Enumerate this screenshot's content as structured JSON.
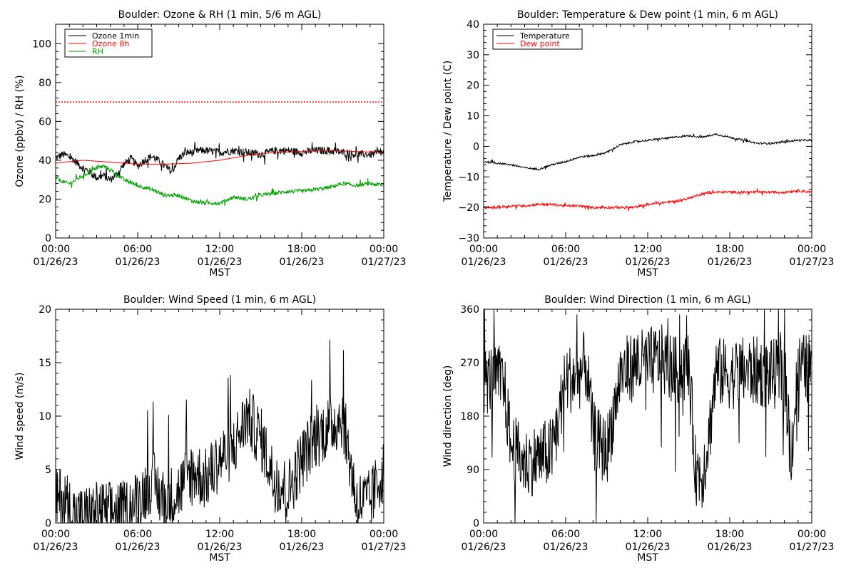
{
  "chart_data": [
    {
      "type": "line",
      "title": "Boulder: Ozone & RH (1 min, 5/6 m AGL)",
      "ylabel": "Ozone (ppbv) / RH (%)",
      "xlabel": "MST",
      "ylim": [
        0,
        110
      ],
      "yticks": [
        0,
        20,
        40,
        60,
        80,
        100
      ],
      "xlim": [
        0,
        24
      ],
      "xticks": [
        0,
        6,
        12,
        18,
        24
      ],
      "xtick_labels": [
        [
          "00:00",
          "01/26/23"
        ],
        [
          "06:00",
          "01/26/23"
        ],
        [
          "12:00",
          "01/26/23"
        ],
        [
          "18:00",
          "01/26/23"
        ],
        [
          "00:00",
          "01/27/23"
        ]
      ],
      "legend_position": "top-left",
      "reference_line": {
        "value": 70,
        "style": "dotted",
        "color": "#ff0000"
      },
      "series": [
        {
          "name": "Ozone 1min",
          "color": "#000000",
          "noise": 2.0,
          "x": [
            0,
            0.5,
            1,
            1.5,
            2,
            2.5,
            3,
            3.5,
            4,
            4.5,
            5,
            5.5,
            6,
            6.5,
            7,
            7.5,
            8,
            8.5,
            9,
            9.5,
            10,
            10.5,
            11,
            12,
            13,
            14,
            15,
            16,
            17,
            18,
            19,
            20,
            21,
            22,
            23,
            24
          ],
          "y": [
            41,
            43,
            42,
            39,
            36,
            34,
            31,
            32,
            30,
            33,
            38,
            41,
            37,
            40,
            42,
            40,
            37,
            34,
            41,
            44,
            44,
            45,
            45,
            44,
            45,
            44,
            43,
            45,
            45,
            44,
            45,
            45,
            44,
            43,
            43,
            44
          ]
        },
        {
          "name": "Ozone 8h",
          "color": "#ff0000",
          "noise": 0,
          "x": [
            0,
            2,
            4,
            6,
            8,
            10,
            12,
            14,
            16,
            18,
            20,
            22,
            24
          ],
          "y": [
            38.5,
            40,
            39,
            38,
            38,
            38.5,
            40,
            42.5,
            44,
            44.5,
            45,
            44.5,
            44
          ]
        },
        {
          "name": "RH",
          "color": "#00a000",
          "noise": 1.0,
          "x": [
            0,
            0.5,
            1,
            2,
            3,
            3.5,
            4,
            4.5,
            5,
            6,
            7,
            8,
            9,
            10,
            11,
            12,
            13,
            14,
            15,
            16,
            17,
            18,
            19,
            20,
            21,
            22,
            23,
            24
          ],
          "y": [
            31,
            29,
            28,
            32,
            36,
            37,
            35,
            33,
            30,
            27,
            25,
            22,
            22,
            19,
            18,
            18,
            21,
            20,
            22,
            23,
            24,
            24,
            25,
            26,
            28,
            27,
            28,
            27
          ]
        }
      ]
    },
    {
      "type": "line",
      "title": "Boulder: Temperature & Dew point (1 min, 6 m AGL)",
      "ylabel": "Temperature / Dew point (C)",
      "xlabel": "MST",
      "ylim": [
        -30,
        40
      ],
      "yticks": [
        -30,
        -20,
        -10,
        0,
        10,
        20,
        30,
        40
      ],
      "xlim": [
        0,
        24
      ],
      "xticks": [
        0,
        6,
        12,
        18,
        24
      ],
      "xtick_labels": [
        [
          "00:00",
          "01/26/23"
        ],
        [
          "06:00",
          "01/26/23"
        ],
        [
          "12:00",
          "01/26/23"
        ],
        [
          "18:00",
          "01/26/23"
        ],
        [
          "00:00",
          "01/27/23"
        ]
      ],
      "legend_position": "top-left",
      "series": [
        {
          "name": "Temperature",
          "color": "#000000",
          "noise": 0.3,
          "x": [
            0,
            1,
            2,
            3,
            4,
            5,
            6,
            7,
            8,
            9,
            10,
            11,
            12,
            13,
            14,
            15,
            16,
            17,
            18,
            19,
            20,
            21,
            22,
            23,
            24
          ],
          "y": [
            -5,
            -5.5,
            -6,
            -7,
            -7.5,
            -6,
            -5,
            -3.5,
            -3,
            -2,
            0.5,
            1.5,
            2,
            2.5,
            3,
            3.5,
            3,
            4,
            3,
            2,
            1,
            1,
            1.5,
            2,
            2
          ]
        },
        {
          "name": "Dew point",
          "color": "#ff0000",
          "noise": 0.4,
          "x": [
            0,
            1,
            2,
            3,
            4,
            5,
            6,
            7,
            8,
            9,
            10,
            11,
            12,
            13,
            14,
            15,
            16,
            17,
            18,
            19,
            20,
            21,
            22,
            23,
            24
          ],
          "y": [
            -20,
            -20,
            -19.5,
            -19.5,
            -19,
            -19,
            -19.5,
            -19.5,
            -20,
            -20,
            -20,
            -20,
            -19,
            -18.5,
            -18,
            -17,
            -15.5,
            -15,
            -15,
            -15,
            -15,
            -15,
            -15,
            -14.5,
            -15
          ]
        }
      ]
    },
    {
      "type": "line",
      "title": "Boulder: Wind Speed (1 min, 6 m AGL)",
      "ylabel": "Wind speed (m/s)",
      "xlabel": "MST",
      "ylim": [
        0,
        20
      ],
      "yticks": [
        0,
        5,
        10,
        15,
        20
      ],
      "xlim": [
        0,
        24
      ],
      "xticks": [
        0,
        6,
        12,
        18,
        24
      ],
      "xtick_labels": [
        [
          "00:00",
          "01/26/23"
        ],
        [
          "06:00",
          "01/26/23"
        ],
        [
          "12:00",
          "01/26/23"
        ],
        [
          "18:00",
          "01/26/23"
        ],
        [
          "00:00",
          "01/27/23"
        ]
      ],
      "series": [
        {
          "name": "",
          "color": "#000000",
          "noise": 3.0,
          "x": [
            0,
            0.5,
            1,
            1.5,
            2,
            3,
            4,
            5,
            6,
            6.5,
            7,
            8,
            9,
            10,
            11,
            12,
            13,
            14,
            15,
            16,
            17,
            18,
            19,
            20,
            21,
            22,
            23,
            24
          ],
          "y": [
            2,
            2.5,
            1.5,
            0.5,
            0.5,
            1,
            1,
            1,
            2,
            3,
            4,
            2,
            3,
            5,
            4,
            6,
            7,
            10,
            8,
            4,
            3,
            6,
            8,
            9,
            10,
            2,
            2,
            5
          ]
        }
      ]
    },
    {
      "type": "line",
      "title": "Boulder: Wind Direction (1 min, 6 m AGL)",
      "ylabel": "Wind direction (deg)",
      "xlabel": "MST",
      "ylim": [
        0,
        360
      ],
      "yticks": [
        0,
        90,
        180,
        270,
        360
      ],
      "xlim": [
        0,
        24
      ],
      "xticks": [
        0,
        6,
        12,
        18,
        24
      ],
      "xtick_labels": [
        [
          "00:00",
          "01/26/23"
        ],
        [
          "06:00",
          "01/26/23"
        ],
        [
          "12:00",
          "01/26/23"
        ],
        [
          "18:00",
          "01/26/23"
        ],
        [
          "00:00",
          "01/27/23"
        ]
      ],
      "series": [
        {
          "name": "",
          "color": "#000000",
          "noise": 60,
          "x": [
            0,
            1,
            1.5,
            2,
            3,
            4,
            5,
            6,
            7,
            7.5,
            8,
            8.5,
            9,
            10,
            11,
            12,
            13,
            14,
            15,
            15.5,
            16,
            16.5,
            17,
            18,
            19,
            20,
            21,
            22,
            22.5,
            23,
            24
          ],
          "y": [
            240,
            245,
            230,
            130,
            100,
            110,
            120,
            240,
            250,
            270,
            150,
            130,
            120,
            250,
            265,
            270,
            275,
            255,
            265,
            90,
            80,
            150,
            255,
            250,
            255,
            255,
            250,
            250,
            120,
            260,
            260
          ]
        }
      ]
    }
  ]
}
